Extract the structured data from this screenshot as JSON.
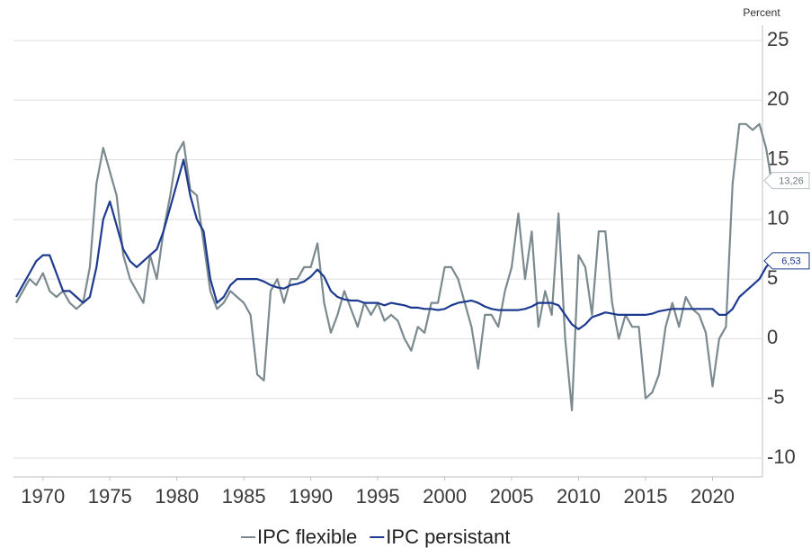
{
  "chart_data": {
    "type": "line",
    "y_axis_label": "Percent",
    "x": [
      1968,
      1968.5,
      1969,
      1969.5,
      1970,
      1970.5,
      1971,
      1971.5,
      1972,
      1972.5,
      1973,
      1973.5,
      1974,
      1974.5,
      1975,
      1975.5,
      1976,
      1976.5,
      1977,
      1977.5,
      1978,
      1978.5,
      1979,
      1979.5,
      1980,
      1980.5,
      1981,
      1981.5,
      1982,
      1982.5,
      1983,
      1983.5,
      1984,
      1984.5,
      1985,
      1985.5,
      1986,
      1986.5,
      1987,
      1987.5,
      1988,
      1988.5,
      1989,
      1989.5,
      1990,
      1990.5,
      1991,
      1991.5,
      1992,
      1992.5,
      1993,
      1993.5,
      1994,
      1994.5,
      1995,
      1995.5,
      1996,
      1996.5,
      1997,
      1997.5,
      1998,
      1998.5,
      1999,
      1999.5,
      2000,
      2000.5,
      2001,
      2001.5,
      2002,
      2002.5,
      2003,
      2003.5,
      2004,
      2004.5,
      2005,
      2005.5,
      2006,
      2006.5,
      2007,
      2007.5,
      2008,
      2008.5,
      2009,
      2009.5,
      2010,
      2010.5,
      2011,
      2011.5,
      2012,
      2012.5,
      2013,
      2013.5,
      2014,
      2014.5,
      2015,
      2015.5,
      2016,
      2016.5,
      2017,
      2017.5,
      2018,
      2018.5,
      2019,
      2019.5,
      2020,
      2020.5,
      2021,
      2021.5,
      2022,
      2022.5,
      2023,
      2023.5,
      2024,
      2024.4
    ],
    "series": [
      {
        "name": "IPC flexible",
        "color": "#7b8a8f",
        "values": [
          3,
          4,
          5,
          4.5,
          5.5,
          4,
          3.5,
          4,
          3,
          2.5,
          3,
          6,
          13,
          16,
          14,
          12,
          7,
          5,
          4,
          3,
          7,
          5,
          9,
          12,
          15.5,
          16.5,
          12.5,
          12,
          8,
          4,
          2.5,
          3,
          4,
          3.5,
          3,
          2,
          -3,
          -3.5,
          4,
          5,
          3,
          5,
          5,
          6,
          6,
          8,
          3,
          0.5,
          2,
          4,
          2.5,
          1,
          3,
          2,
          3,
          1.5,
          2,
          1.5,
          0,
          -1,
          1,
          0.5,
          3,
          3,
          6,
          6,
          5,
          3,
          1,
          -2.5,
          2,
          2,
          1,
          4,
          6,
          10.5,
          5,
          9,
          1,
          4,
          2,
          10.5,
          0,
          -6,
          7,
          6,
          2,
          9,
          9,
          3,
          0,
          2,
          1,
          1,
          -5,
          -4.5,
          -3,
          1,
          3,
          1,
          3.5,
          2.5,
          2,
          0.5,
          -4,
          0,
          1,
          13,
          18,
          18,
          17.5,
          18,
          16,
          13.26
        ],
        "last_value_label": "13,26"
      },
      {
        "name": "IPC persistant",
        "color": "#1d3a8f",
        "values": [
          3.5,
          4.5,
          5.5,
          6.5,
          7,
          7,
          5.5,
          4,
          4,
          3.5,
          3,
          3.5,
          6,
          10,
          11.5,
          9.5,
          7.5,
          6.5,
          6,
          6.5,
          7,
          7.5,
          9,
          11,
          13,
          15,
          12,
          10,
          9,
          5,
          3,
          3.5,
          4.5,
          5,
          5,
          5,
          5,
          4.8,
          4.5,
          4.3,
          4.2,
          4.5,
          4.6,
          4.8,
          5.2,
          5.8,
          5.2,
          4,
          3.5,
          3.3,
          3.2,
          3.2,
          3,
          3,
          3,
          2.8,
          3,
          2.9,
          2.8,
          2.6,
          2.6,
          2.5,
          2.5,
          2.4,
          2.5,
          2.8,
          3,
          3.1,
          3.2,
          3,
          2.7,
          2.5,
          2.4,
          2.4,
          2.4,
          2.4,
          2.5,
          2.7,
          3,
          3,
          3,
          2.8,
          2,
          1.2,
          0.8,
          1.2,
          1.8,
          2,
          2.2,
          2.1,
          2,
          2,
          2,
          2,
          2,
          2.1,
          2.3,
          2.4,
          2.5,
          2.5,
          2.5,
          2.5,
          2.5,
          2.5,
          2.5,
          2,
          2,
          2.5,
          3.5,
          4,
          4.5,
          5,
          6,
          6.53
        ],
        "last_value_label": "6,53"
      }
    ],
    "xlim": [
      1967.8,
      2024.4
    ],
    "xticks": [
      1970,
      1975,
      1980,
      1985,
      1990,
      1995,
      2000,
      2005,
      2010,
      2015,
      2020
    ],
    "ylim": [
      -11.6,
      27.6
    ],
    "yticks": [
      -10,
      -5,
      0,
      5,
      10,
      15,
      20,
      25
    ],
    "grid": true,
    "legend": "bottom"
  }
}
